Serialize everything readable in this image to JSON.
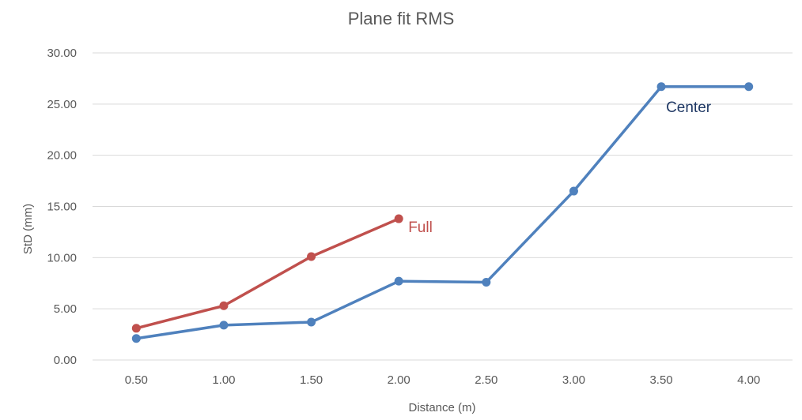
{
  "chart_data": {
    "type": "line",
    "title": "Plane fit RMS",
    "xlabel": "Distance (m)",
    "ylabel": "StD (mm)",
    "categories": [
      "0.50",
      "1.00",
      "1.50",
      "2.00",
      "2.50",
      "3.00",
      "3.50",
      "4.00"
    ],
    "y_ticks": [
      "0.00",
      "5.00",
      "10.00",
      "15.00",
      "20.00",
      "25.00",
      "30.00"
    ],
    "ylim": [
      0,
      30
    ],
    "grid": true,
    "legend": "inline labels",
    "series": [
      {
        "name": "Full",
        "color": "#c0504d",
        "values": [
          3.1,
          5.3,
          10.1,
          13.8,
          null,
          null,
          null,
          null
        ]
      },
      {
        "name": "Center",
        "color": "#4f81bd",
        "label_color": "#1f3864",
        "values": [
          2.1,
          3.4,
          3.7,
          7.7,
          7.6,
          16.5,
          26.7,
          26.7
        ]
      }
    ]
  }
}
